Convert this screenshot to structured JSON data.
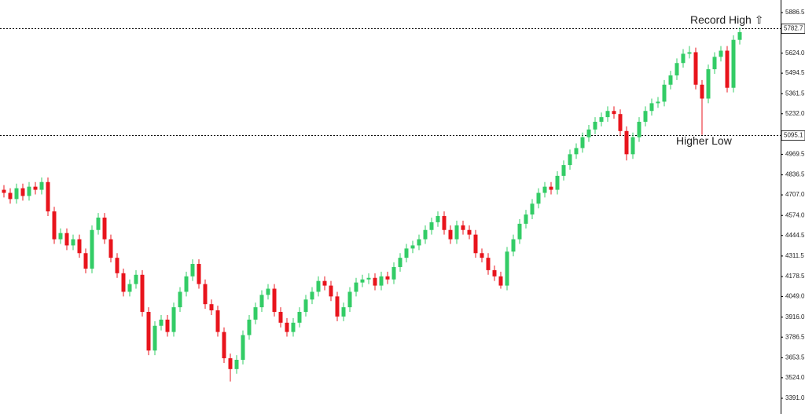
{
  "chart_data": {
    "type": "candlestick",
    "up_color": "#33cc66",
    "down_color": "#e8141c",
    "ylim": [
      3289.4,
      5967.8
    ],
    "yticks": [
      {
        "value": 5886.5,
        "label": "5886.5"
      },
      {
        "value": 5624.0,
        "label": "5624.0"
      },
      {
        "value": 5494.5,
        "label": "5494.5"
      },
      {
        "value": 5361.5,
        "label": "5361.5"
      },
      {
        "value": 5232.0,
        "label": "5232.0"
      },
      {
        "value": 4969.5,
        "label": "4969.5"
      },
      {
        "value": 4836.5,
        "label": "4836.5"
      },
      {
        "value": 4707.0,
        "label": "4707.0"
      },
      {
        "value": 4574.0,
        "label": "4574.0"
      },
      {
        "value": 4444.5,
        "label": "4444.5"
      },
      {
        "value": 4311.5,
        "label": "4311.5"
      },
      {
        "value": 4178.5,
        "label": "4178.5"
      },
      {
        "value": 4049.0,
        "label": "4049.0"
      },
      {
        "value": 3916.0,
        "label": "3916.0"
      },
      {
        "value": 3786.5,
        "label": "3786.5"
      },
      {
        "value": 3653.5,
        "label": "3653.5"
      },
      {
        "value": 3524.0,
        "label": "3524.0"
      },
      {
        "value": 3391.0,
        "label": "3391.0"
      }
    ],
    "levels": [
      {
        "value": 5782.7,
        "label": "Record High ⇧"
      },
      {
        "value": 5095.1,
        "label": "Higher Low"
      }
    ],
    "open": [
      4740,
      4720,
      4680,
      4750,
      4700,
      4760,
      4740,
      4790,
      4600,
      4420,
      4460,
      4380,
      4420,
      4330,
      4230,
      4480,
      4560,
      4420,
      4300,
      4200,
      4080,
      4130,
      4190,
      3950,
      3700,
      3860,
      3900,
      3820,
      3980,
      4080,
      4180,
      4260,
      4130,
      4000,
      3960,
      3820,
      3650,
      3580,
      3640,
      3800,
      3900,
      3980,
      4060,
      4100,
      3950,
      3880,
      3820,
      3880,
      3950,
      4030,
      4080,
      4150,
      4120,
      4050,
      3920,
      3980,
      4080,
      4140,
      4160,
      4170,
      4120,
      4180,
      4160,
      4240,
      4300,
      4360,
      4380,
      4420,
      4480,
      4530,
      4570,
      4480,
      4420,
      4510,
      4480,
      4450,
      4330,
      4300,
      4220,
      4180,
      4120,
      4340,
      4420,
      4520,
      4580,
      4650,
      4720,
      4760,
      4740,
      4830,
      4900,
      4970,
      5010,
      5080,
      5130,
      5180,
      5210,
      5250,
      5230,
      5120,
      4970,
      5080,
      5180,
      5250,
      5300,
      5310,
      5420,
      5480,
      5560,
      5620,
      5630,
      5420,
      5330,
      5520,
      5600,
      5640,
      5400,
      5710
    ],
    "high": [
      4770,
      4750,
      4780,
      4780,
      4790,
      4790,
      4820,
      4820,
      4630,
      4490,
      4490,
      4450,
      4450,
      4360,
      4510,
      4590,
      4590,
      4450,
      4330,
      4230,
      4160,
      4220,
      4220,
      3980,
      3890,
      3930,
      3930,
      4010,
      4110,
      4210,
      4290,
      4290,
      4160,
      4030,
      3990,
      3850,
      3680,
      3670,
      3830,
      3930,
      4010,
      4090,
      4130,
      4130,
      3980,
      3910,
      3910,
      3980,
      4060,
      4110,
      4180,
      4180,
      4150,
      4080,
      4010,
      4110,
      4170,
      4190,
      4200,
      4200,
      4210,
      4210,
      4270,
      4330,
      4390,
      4410,
      4450,
      4510,
      4560,
      4600,
      4600,
      4510,
      4540,
      4540,
      4510,
      4480,
      4360,
      4330,
      4250,
      4210,
      4370,
      4450,
      4550,
      4610,
      4680,
      4750,
      4790,
      4790,
      4860,
      4930,
      5000,
      5040,
      5110,
      5160,
      5210,
      5240,
      5280,
      5280,
      5260,
      5150,
      5110,
      5210,
      5280,
      5330,
      5340,
      5450,
      5510,
      5590,
      5650,
      5670,
      5660,
      5450,
      5550,
      5630,
      5670,
      5670,
      5740,
      5790
    ],
    "low": [
      4690,
      4650,
      4650,
      4670,
      4670,
      4710,
      4710,
      4570,
      4390,
      4390,
      4350,
      4350,
      4300,
      4200,
      4200,
      4450,
      4390,
      4270,
      4170,
      4050,
      4050,
      4100,
      3920,
      3670,
      3670,
      3830,
      3790,
      3790,
      3950,
      4050,
      4150,
      4100,
      3970,
      3930,
      3790,
      3620,
      3500,
      3550,
      3610,
      3770,
      3870,
      3950,
      4030,
      3920,
      3850,
      3790,
      3790,
      3850,
      3920,
      4000,
      4050,
      4090,
      4020,
      3890,
      3890,
      3950,
      4050,
      4110,
      4130,
      4090,
      4090,
      4130,
      4130,
      4210,
      4270,
      4330,
      4350,
      4390,
      4450,
      4500,
      4450,
      4390,
      4390,
      4450,
      4420,
      4300,
      4270,
      4190,
      4150,
      4100,
      4090,
      4310,
      4390,
      4490,
      4550,
      4620,
      4690,
      4710,
      4710,
      4800,
      4870,
      4940,
      4980,
      5050,
      5100,
      5150,
      5180,
      5200,
      5090,
      4930,
      4940,
      5050,
      5150,
      5220,
      5270,
      5280,
      5390,
      5450,
      5530,
      5590,
      5390,
      5095,
      5300,
      5490,
      5570,
      5370,
      5370,
      5680
    ],
    "close": [
      4720,
      4680,
      4750,
      4700,
      4760,
      4740,
      4790,
      4600,
      4420,
      4460,
      4380,
      4420,
      4330,
      4230,
      4480,
      4560,
      4420,
      4300,
      4200,
      4080,
      4130,
      4190,
      3950,
      3700,
      3860,
      3900,
      3820,
      3980,
      4080,
      4180,
      4260,
      4130,
      4000,
      3960,
      3820,
      3650,
      3580,
      3640,
      3800,
      3900,
      3980,
      4060,
      4100,
      3950,
      3880,
      3820,
      3880,
      3950,
      4030,
      4080,
      4150,
      4120,
      4050,
      3920,
      3980,
      4080,
      4140,
      4160,
      4170,
      4120,
      4180,
      4160,
      4240,
      4300,
      4360,
      4380,
      4420,
      4480,
      4530,
      4570,
      4480,
      4420,
      4510,
      4480,
      4450,
      4330,
      4300,
      4220,
      4180,
      4120,
      4340,
      4420,
      4520,
      4580,
      4650,
      4720,
      4760,
      4740,
      4830,
      4900,
      4970,
      5010,
      5080,
      5130,
      5180,
      5210,
      5250,
      5230,
      5120,
      4970,
      5080,
      5180,
      5250,
      5300,
      5310,
      5420,
      5480,
      5560,
      5620,
      5630,
      5420,
      5330,
      5520,
      5600,
      5640,
      5400,
      5710,
      5760
    ]
  }
}
